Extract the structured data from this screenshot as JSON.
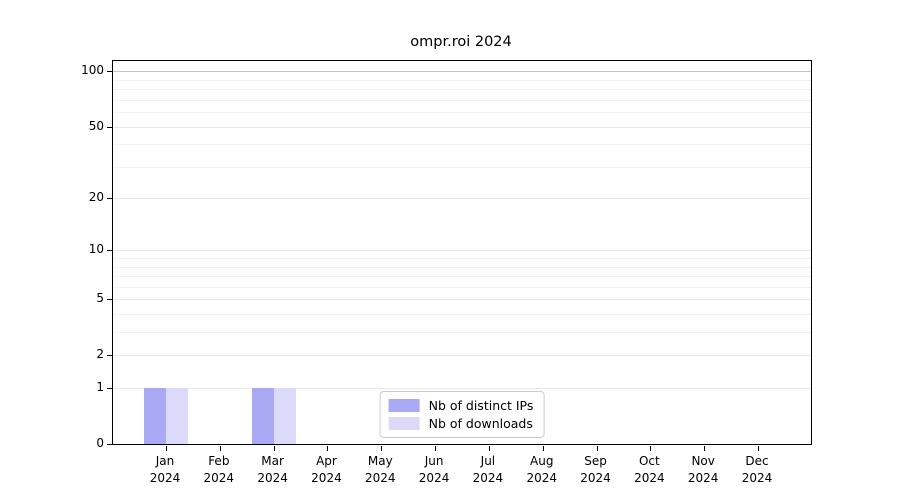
{
  "title": "ompr.roi 2024",
  "colors": {
    "bar_distinct_ips": "#a9a9f4",
    "bar_downloads": "#dbdbf9",
    "grid_top_line": "#c4c4c4",
    "grid_major": "#e8e8e8",
    "grid_minor": "#f1f1f1",
    "axis": "#000000",
    "legend_border": "#cccccc"
  },
  "legend": {
    "position": "lower center",
    "items": [
      {
        "label": "Nb of distinct IPs"
      },
      {
        "label": "Nb of downloads"
      }
    ]
  },
  "chart_data": {
    "type": "bar",
    "title": "ompr.roi 2024",
    "categories": [
      "Jan",
      "Feb",
      "Mar",
      "Apr",
      "May",
      "Jun",
      "Jul",
      "Aug",
      "Sep",
      "Oct",
      "Nov",
      "Dec"
    ],
    "category_year": "2024",
    "series": [
      {
        "name": "Nb of distinct IPs",
        "color": "#a9a9f4",
        "values": [
          1,
          0,
          1,
          0,
          0,
          0,
          0,
          0,
          0,
          0,
          0,
          0
        ]
      },
      {
        "name": "Nb of downloads",
        "color": "#dbdbf9",
        "values": [
          1,
          0,
          1,
          0,
          0,
          0,
          0,
          0,
          0,
          0,
          0,
          0
        ]
      }
    ],
    "xlabel": "",
    "ylabel": "",
    "yscale": "log1p",
    "ylim": [
      0,
      113
    ],
    "yticks_major": [
      0,
      1,
      2,
      5,
      10,
      20,
      50,
      100
    ],
    "yticks_minor": [
      3,
      4,
      6,
      7,
      8,
      9,
      30,
      40,
      60,
      70,
      80,
      90
    ],
    "emphasized_gridline": 100,
    "grid": true,
    "legend_position": "lower center"
  }
}
